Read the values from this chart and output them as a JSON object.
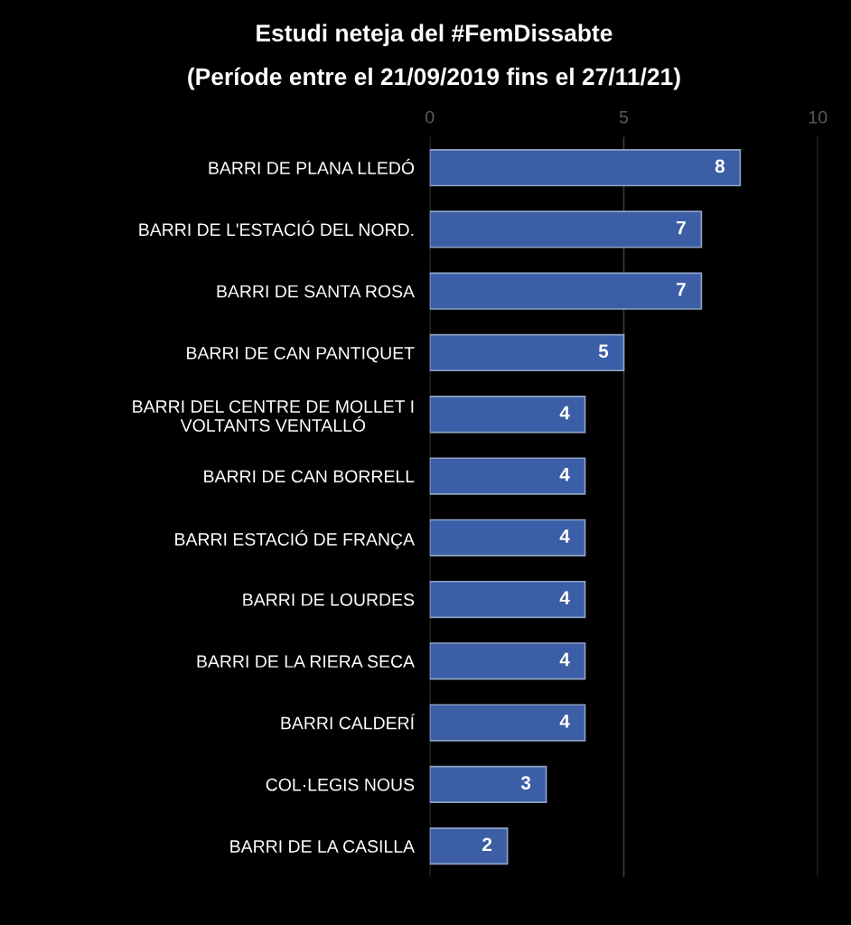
{
  "chart_data": {
    "type": "bar",
    "orientation": "horizontal",
    "title": "Estudi neteja del #FemDissabte",
    "subtitle": "(Període entre el 21/09/2019 fins el 27/11/21)",
    "categories": [
      "BARRI DE PLANA LLEDÓ",
      "BARRI DE L'ESTACIÓ DEL NORD.",
      "BARRI DE SANTA ROSA",
      "BARRI DE CAN PANTIQUET",
      "BARRI DEL CENTRE DE MOLLET I VOLTANTS VENTALLÓ",
      "BARRI DE CAN BORRELL",
      "BARRI ESTACIÓ DE FRANÇA",
      "BARRI DE LOURDES",
      "BARRI DE LA RIERA SECA",
      "BARRI CALDERÍ",
      "COL·LEGIS NOUS",
      "BARRI DE LA CASILLA"
    ],
    "values": [
      8,
      7,
      7,
      5,
      4,
      4,
      4,
      4,
      4,
      4,
      3,
      2
    ],
    "color": "#3b5ea6",
    "xlim": [
      0,
      10
    ],
    "xticks": [
      0,
      5,
      10
    ],
    "grid": "x",
    "data_labels": true
  }
}
